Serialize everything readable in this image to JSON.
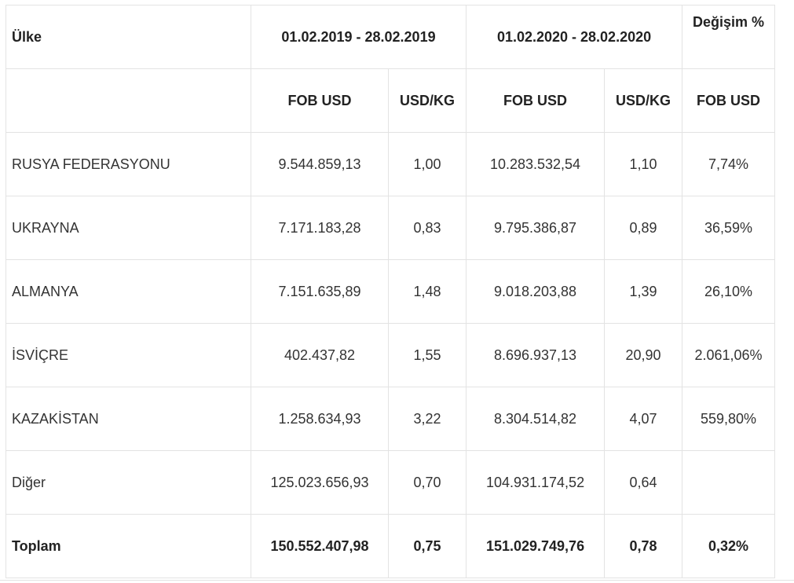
{
  "header": {
    "country": "Ülke",
    "period_2019": "01.02.2019 - 28.02.2019",
    "period_2020": "01.02.2020 - 28.02.2020",
    "change": "Değişim %"
  },
  "subheader": {
    "fob_2019": "FOB USD",
    "usdkg_2019": "USD/KG",
    "fob_2020": "FOB USD",
    "usdkg_2020": "USD/KG",
    "fob_change": "FOB USD"
  },
  "rows": [
    {
      "country": "RUSYA FEDERASYONU",
      "fob_2019": "9.544.859,13",
      "usdkg_2019": "1,00",
      "fob_2020": "10.283.532,54",
      "usdkg_2020": "1,10",
      "change": "7,74%"
    },
    {
      "country": "UKRAYNA",
      "fob_2019": "7.171.183,28",
      "usdkg_2019": "0,83",
      "fob_2020": "9.795.386,87",
      "usdkg_2020": "0,89",
      "change": "36,59%"
    },
    {
      "country": "ALMANYA",
      "fob_2019": "7.151.635,89",
      "usdkg_2019": "1,48",
      "fob_2020": "9.018.203,88",
      "usdkg_2020": "1,39",
      "change": "26,10%"
    },
    {
      "country": "İSVİÇRE",
      "fob_2019": "402.437,82",
      "usdkg_2019": "1,55",
      "fob_2020": "8.696.937,13",
      "usdkg_2020": "20,90",
      "change": "2.061,06%"
    },
    {
      "country": "KAZAKİSTAN",
      "fob_2019": "1.258.634,93",
      "usdkg_2019": "3,22",
      "fob_2020": "8.304.514,82",
      "usdkg_2020": "4,07",
      "change": "559,80%"
    },
    {
      "country": "Diğer",
      "fob_2019": "125.023.656,93",
      "usdkg_2019": "0,70",
      "fob_2020": "104.931.174,52",
      "usdkg_2020": "0,64",
      "change": ""
    }
  ],
  "total": {
    "label": "Toplam",
    "fob_2019": "150.552.407,98",
    "usdkg_2019": "0,75",
    "fob_2020": "151.029.749,76",
    "usdkg_2020": "0,78",
    "change": "0,32%"
  }
}
